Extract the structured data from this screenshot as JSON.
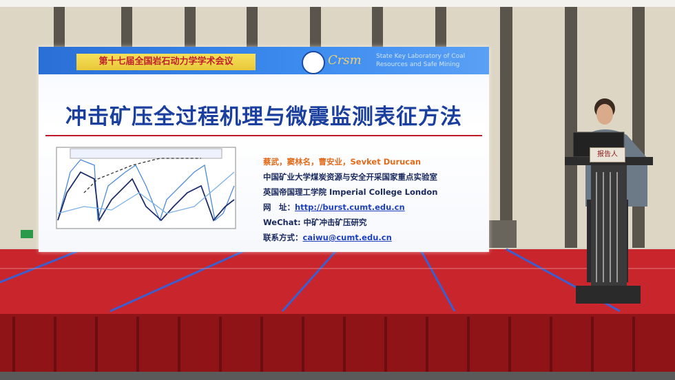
{
  "slide": {
    "header": {
      "conference": "第十七届全国岩石动力学学术会议",
      "lab": "State Key Laboratory of Coal Resources and Safe Mining",
      "logo_text": "Crsm"
    },
    "title": "冲击矿压全过程机理与微震监测表征方法",
    "info": {
      "authors": "蔡武，窦林名，曹安业，Sevket Durucan",
      "affiliation_1": "中国矿业大学煤炭资源与安全开采国家重点实验室",
      "affiliation_2": "英国帝国理工学院 Imperial College London",
      "website_label": "网　址：",
      "website": "http://burst.cumt.edu.cn",
      "wechat": "WeChat: 中矿冲击矿压研究",
      "contact_label": "联系方式：",
      "contact": "caiwu@cumt.edu.cn"
    }
  },
  "podium_sign": "报告人"
}
